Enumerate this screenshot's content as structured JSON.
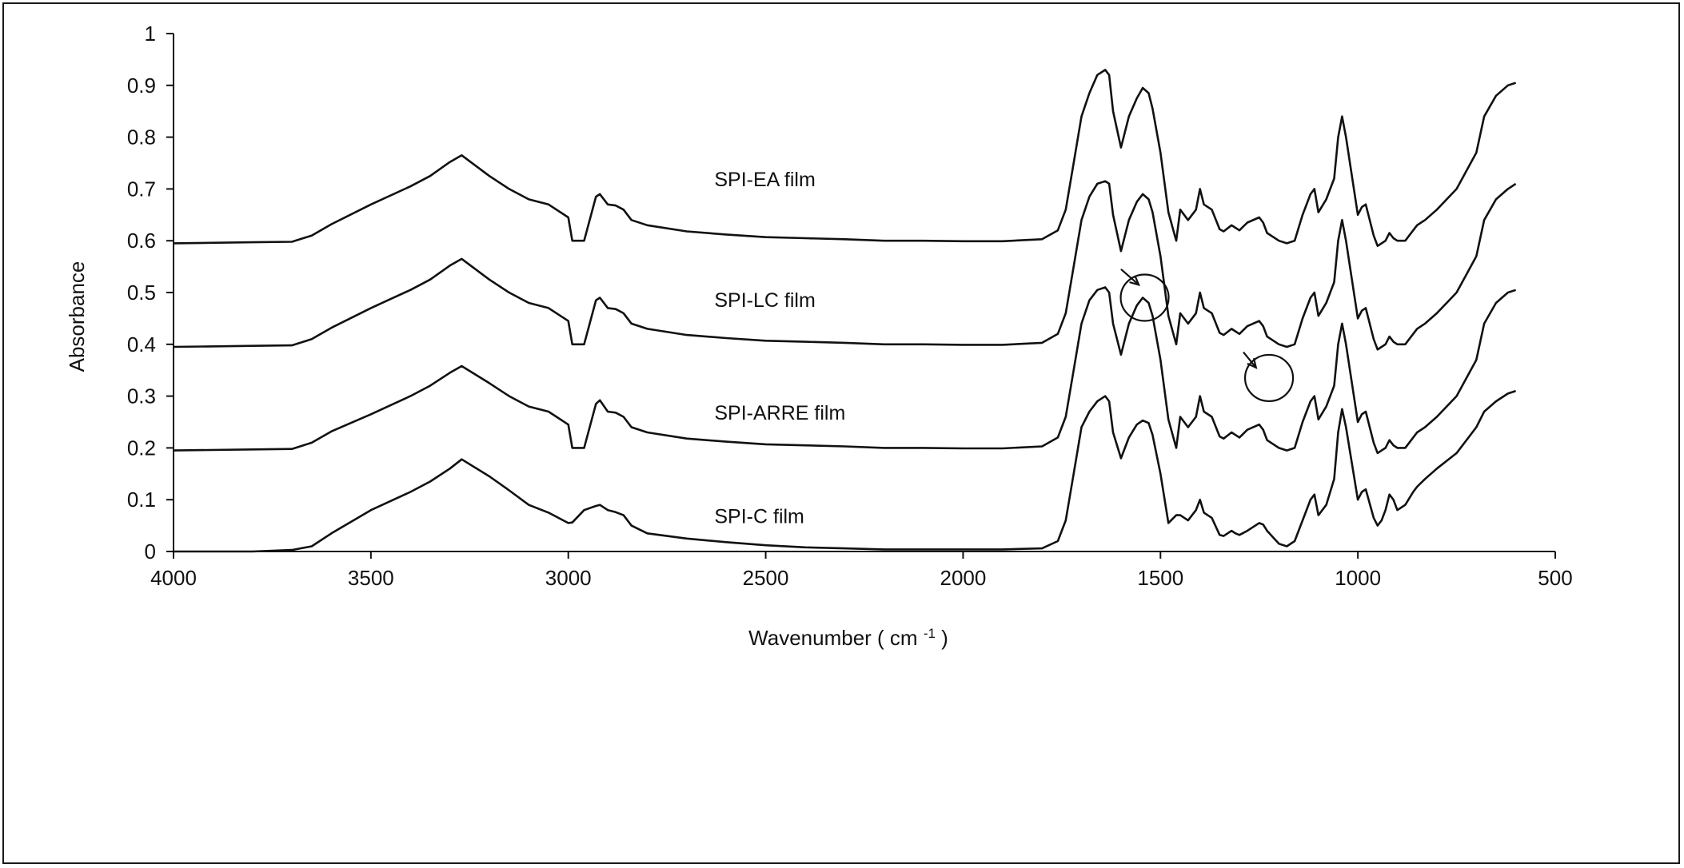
{
  "chart_data": {
    "type": "line",
    "title": "",
    "xlabel": "Wavenumber ( cm",
    "xlabel_unit_sup": "-1",
    "xlabel_close": ")",
    "ylabel": "Absorbance",
    "xlim": [
      4000,
      500
    ],
    "ylim": [
      0,
      1
    ],
    "x_reversed": true,
    "grid": false,
    "x_ticks": [
      4000,
      3500,
      3000,
      2500,
      2000,
      1500,
      1000,
      500
    ],
    "y_ticks": [
      0,
      0.1,
      0.2,
      0.3,
      0.4,
      0.5,
      0.6,
      0.7,
      0.8,
      0.9,
      1
    ],
    "y_tick_labels": [
      "0",
      "0.1",
      "0.2",
      "0.3",
      "0.4",
      "0.5",
      "0.6",
      "0.7",
      "0.8",
      "0.9",
      "1"
    ],
    "x_tick_labels": [
      "4000",
      "3500",
      "3000",
      "2500",
      "2000",
      "1500",
      "1000",
      "500"
    ],
    "series_x": [
      4000,
      3800,
      3700,
      3650,
      3600,
      3500,
      3400,
      3350,
      3300,
      3270,
      3200,
      3150,
      3100,
      3050,
      3000,
      2990,
      2960,
      2930,
      2920,
      2900,
      2880,
      2860,
      2840,
      2800,
      2700,
      2600,
      2500,
      2400,
      2300,
      2200,
      2100,
      2000,
      1900,
      1800,
      1760,
      1740,
      1720,
      1700,
      1680,
      1660,
      1640,
      1630,
      1620,
      1600,
      1580,
      1560,
      1545,
      1530,
      1520,
      1500,
      1480,
      1460,
      1450,
      1430,
      1410,
      1400,
      1390,
      1370,
      1350,
      1340,
      1320,
      1310,
      1300,
      1280,
      1250,
      1240,
      1230,
      1200,
      1180,
      1160,
      1140,
      1120,
      1110,
      1100,
      1080,
      1060,
      1050,
      1040,
      1030,
      1000,
      990,
      980,
      960,
      950,
      940,
      930,
      920,
      910,
      900,
      880,
      860,
      850,
      830,
      800,
      750,
      700,
      680,
      650,
      620,
      600
    ],
    "series": [
      {
        "name": "SPI-EA film",
        "values": [
          0.595,
          0.597,
          0.598,
          0.61,
          0.632,
          0.67,
          0.705,
          0.725,
          0.752,
          0.765,
          0.725,
          0.7,
          0.68,
          0.67,
          0.645,
          0.6,
          0.6,
          0.685,
          0.69,
          0.67,
          0.668,
          0.66,
          0.64,
          0.63,
          0.618,
          0.612,
          0.607,
          0.605,
          0.603,
          0.6,
          0.6,
          0.599,
          0.599,
          0.603,
          0.62,
          0.66,
          0.75,
          0.84,
          0.885,
          0.92,
          0.93,
          0.92,
          0.85,
          0.78,
          0.84,
          0.875,
          0.895,
          0.885,
          0.855,
          0.77,
          0.655,
          0.6,
          0.66,
          0.64,
          0.66,
          0.7,
          0.67,
          0.66,
          0.622,
          0.618,
          0.63,
          0.625,
          0.62,
          0.635,
          0.645,
          0.635,
          0.615,
          0.6,
          0.595,
          0.6,
          0.65,
          0.69,
          0.7,
          0.655,
          0.68,
          0.72,
          0.8,
          0.84,
          0.8,
          0.65,
          0.665,
          0.67,
          0.61,
          0.59,
          0.595,
          0.6,
          0.615,
          0.605,
          0.6,
          0.6,
          0.62,
          0.63,
          0.64,
          0.66,
          0.7,
          0.77,
          0.84,
          0.88,
          0.9,
          0.905
        ]
      },
      {
        "name": "SPI-LC film",
        "values": [
          0.395,
          0.397,
          0.398,
          0.41,
          0.432,
          0.47,
          0.505,
          0.525,
          0.552,
          0.565,
          0.525,
          0.5,
          0.48,
          0.47,
          0.445,
          0.4,
          0.4,
          0.485,
          0.49,
          0.47,
          0.468,
          0.46,
          0.44,
          0.43,
          0.418,
          0.412,
          0.407,
          0.405,
          0.403,
          0.4,
          0.4,
          0.399,
          0.399,
          0.403,
          0.42,
          0.46,
          0.55,
          0.64,
          0.685,
          0.71,
          0.715,
          0.71,
          0.65,
          0.58,
          0.64,
          0.675,
          0.69,
          0.68,
          0.655,
          0.57,
          0.455,
          0.4,
          0.46,
          0.44,
          0.46,
          0.5,
          0.47,
          0.46,
          0.422,
          0.418,
          0.43,
          0.425,
          0.42,
          0.435,
          0.445,
          0.435,
          0.415,
          0.4,
          0.395,
          0.4,
          0.45,
          0.49,
          0.5,
          0.455,
          0.48,
          0.52,
          0.6,
          0.64,
          0.6,
          0.45,
          0.465,
          0.47,
          0.41,
          0.39,
          0.395,
          0.4,
          0.415,
          0.405,
          0.4,
          0.4,
          0.42,
          0.43,
          0.44,
          0.46,
          0.5,
          0.57,
          0.64,
          0.68,
          0.7,
          0.71
        ]
      },
      {
        "name": "SPI-ARRE film",
        "values": [
          0.195,
          0.197,
          0.198,
          0.21,
          0.232,
          0.265,
          0.3,
          0.32,
          0.345,
          0.358,
          0.325,
          0.3,
          0.28,
          0.27,
          0.245,
          0.2,
          0.2,
          0.285,
          0.292,
          0.27,
          0.268,
          0.26,
          0.24,
          0.23,
          0.218,
          0.212,
          0.207,
          0.205,
          0.203,
          0.2,
          0.2,
          0.199,
          0.199,
          0.203,
          0.22,
          0.26,
          0.35,
          0.44,
          0.485,
          0.505,
          0.51,
          0.5,
          0.44,
          0.38,
          0.44,
          0.475,
          0.49,
          0.48,
          0.455,
          0.37,
          0.255,
          0.2,
          0.26,
          0.24,
          0.26,
          0.3,
          0.27,
          0.26,
          0.222,
          0.218,
          0.23,
          0.225,
          0.22,
          0.235,
          0.245,
          0.235,
          0.215,
          0.2,
          0.195,
          0.2,
          0.25,
          0.29,
          0.3,
          0.255,
          0.28,
          0.32,
          0.4,
          0.44,
          0.4,
          0.25,
          0.265,
          0.27,
          0.21,
          0.19,
          0.195,
          0.2,
          0.215,
          0.205,
          0.2,
          0.2,
          0.22,
          0.23,
          0.24,
          0.26,
          0.3,
          0.37,
          0.44,
          0.48,
          0.5,
          0.505
        ]
      },
      {
        "name": "SPI-C film",
        "values": [
          0.0,
          0.0,
          0.003,
          0.01,
          0.035,
          0.08,
          0.115,
          0.135,
          0.16,
          0.178,
          0.145,
          0.118,
          0.09,
          0.075,
          0.055,
          0.056,
          0.08,
          0.088,
          0.09,
          0.08,
          0.076,
          0.07,
          0.05,
          0.035,
          0.025,
          0.018,
          0.012,
          0.008,
          0.006,
          0.004,
          0.004,
          0.004,
          0.004,
          0.006,
          0.02,
          0.06,
          0.15,
          0.24,
          0.27,
          0.29,
          0.3,
          0.29,
          0.23,
          0.18,
          0.22,
          0.245,
          0.253,
          0.248,
          0.225,
          0.15,
          0.055,
          0.07,
          0.07,
          0.06,
          0.08,
          0.1,
          0.075,
          0.065,
          0.032,
          0.03,
          0.04,
          0.035,
          0.032,
          0.04,
          0.055,
          0.052,
          0.04,
          0.015,
          0.01,
          0.02,
          0.06,
          0.1,
          0.11,
          0.07,
          0.09,
          0.14,
          0.23,
          0.275,
          0.24,
          0.1,
          0.115,
          0.12,
          0.065,
          0.05,
          0.06,
          0.08,
          0.11,
          0.1,
          0.08,
          0.09,
          0.115,
          0.125,
          0.14,
          0.16,
          0.19,
          0.24,
          0.27,
          0.29,
          0.305,
          0.31
        ]
      }
    ],
    "series_labels": [
      {
        "text": "SPI-EA film",
        "x": 2630,
        "y": 0.705
      },
      {
        "text": "SPI-LC film",
        "x": 2630,
        "y": 0.472
      },
      {
        "text": "SPI-ARRE film",
        "x": 2630,
        "y": 0.255
      },
      {
        "text": "SPI-C film",
        "x": 2630,
        "y": 0.055
      }
    ],
    "annotations": [
      {
        "type": "circle",
        "x": 1540,
        "y": 0.49
      },
      {
        "type": "circle",
        "x": 1225,
        "y": 0.335
      },
      {
        "type": "arrow",
        "from": [
          1600,
          0.545
        ],
        "to": [
          1555,
          0.515
        ]
      },
      {
        "type": "arrow",
        "from": [
          1290,
          0.385
        ],
        "to": [
          1258,
          0.355
        ]
      }
    ]
  }
}
